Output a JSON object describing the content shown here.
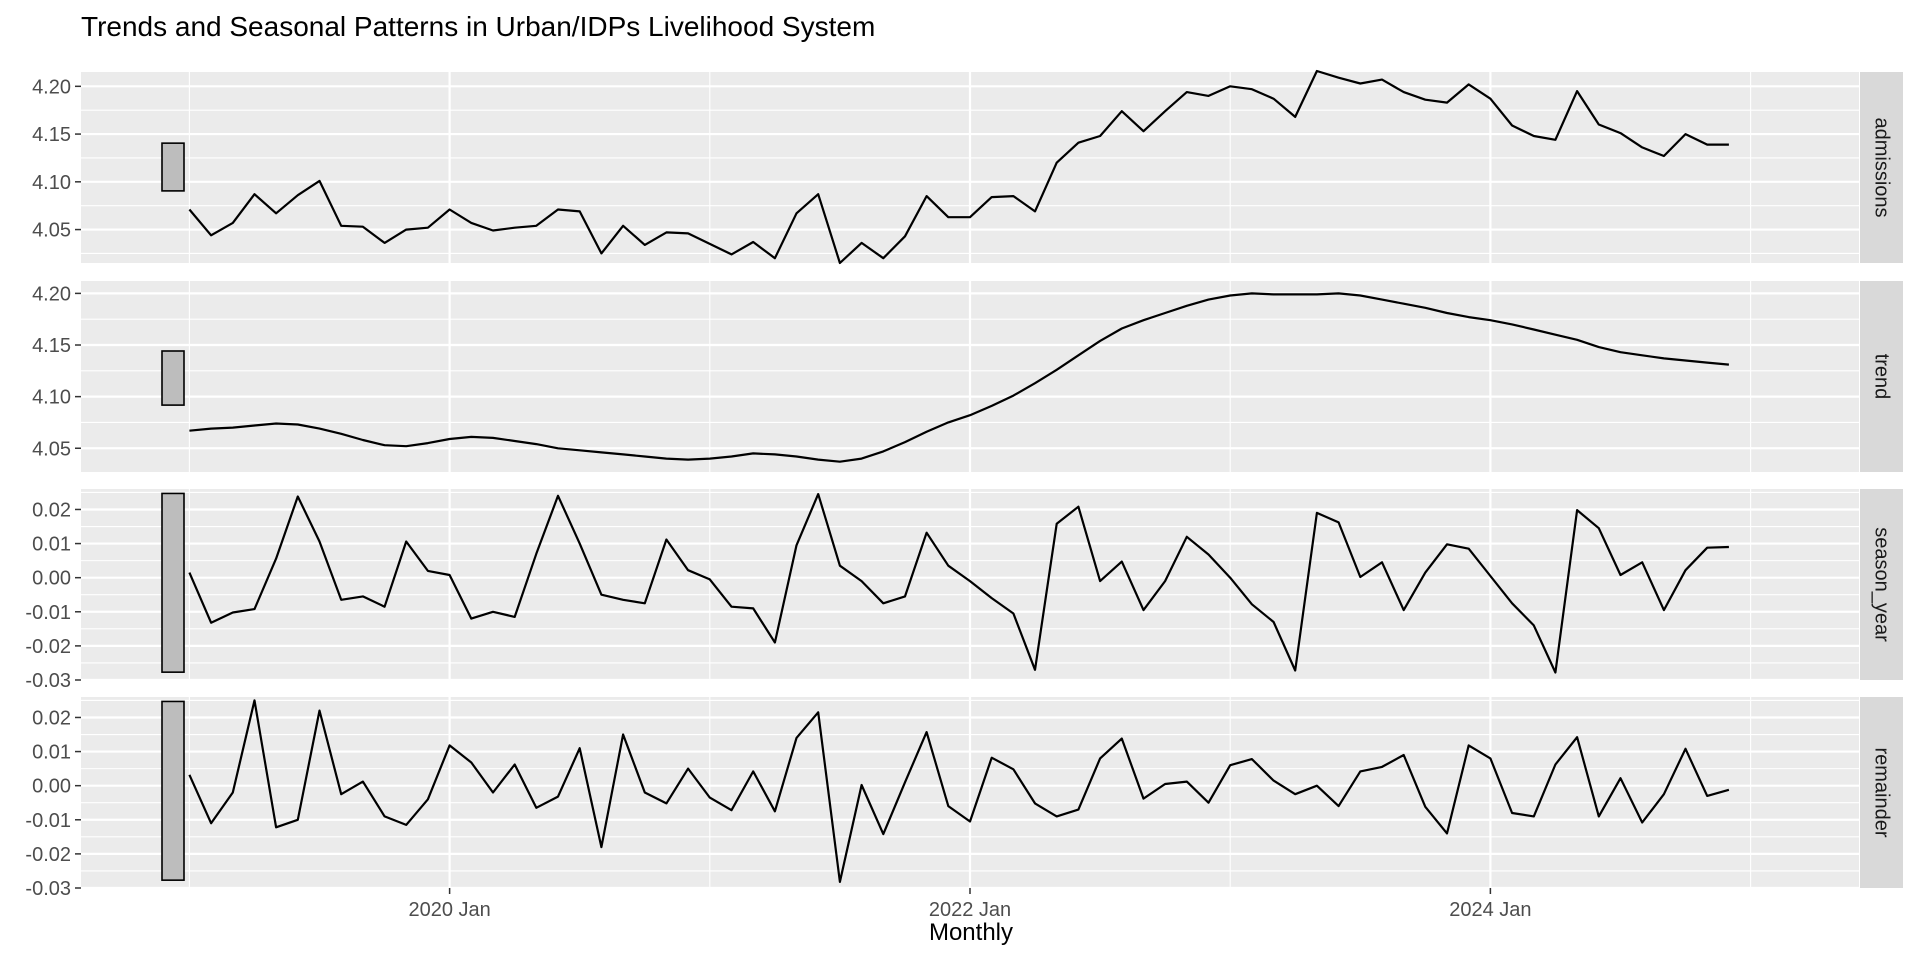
{
  "chart_data": {
    "type": "line",
    "title": "Trends and Seasonal Patterns in Urban/IDPs Livelihood System",
    "xlabel": "Monthly",
    "x_start": "2019 Jan",
    "x_end": "2024 Dec",
    "xlim": [
      "2018 Aug",
      "2025 Jun"
    ],
    "x_ticks": [
      {
        "label": "2020 Jan",
        "month": "2020 Jan"
      },
      {
        "label": "2022 Jan",
        "month": "2022 Jan"
      },
      {
        "label": "2024 Jan",
        "month": "2024 Jan"
      }
    ],
    "grid": true,
    "scale_bar_color": "#bdbdbd",
    "panel_background": "#ebebeb",
    "strip_background": "#d9d9d9",
    "line_color": "#000000",
    "panels": [
      {
        "name": "admissions",
        "ylim": [
          4.015,
          4.215
        ],
        "yticks": [
          4.05,
          4.1,
          4.15,
          4.2
        ],
        "ytick_labels": [
          "4.05",
          "4.10",
          "4.15",
          "4.20"
        ],
        "scale_bar": [
          4.0905,
          4.1405
        ],
        "values": [
          4.071,
          4.044,
          4.057,
          4.087,
          4.067,
          4.086,
          4.101,
          4.054,
          4.053,
          4.036,
          4.05,
          4.052,
          4.071,
          4.057,
          4.049,
          4.052,
          4.054,
          4.071,
          4.069,
          4.025,
          4.054,
          4.034,
          4.047,
          4.046,
          4.035,
          4.024,
          4.037,
          4.02,
          4.067,
          4.087,
          4.015,
          4.036,
          4.02,
          4.043,
          4.085,
          4.063,
          4.063,
          4.084,
          4.085,
          4.069,
          4.12,
          4.141,
          4.148,
          4.174,
          4.153,
          4.174,
          4.194,
          4.19,
          4.2,
          4.197,
          4.187,
          4.168,
          4.216,
          4.209,
          4.203,
          4.207,
          4.194,
          4.186,
          4.183,
          4.202,
          4.187,
          4.159,
          4.148,
          4.144,
          4.195,
          4.16,
          4.151,
          4.136,
          4.127,
          4.15,
          4.139,
          4.139
        ]
      },
      {
        "name": "trend",
        "ylim": [
          4.027,
          4.212
        ],
        "yticks": [
          4.05,
          4.1,
          4.15,
          4.2
        ],
        "ytick_labels": [
          "4.05",
          "4.10",
          "4.15",
          "4.20"
        ],
        "scale_bar": [
          4.0918,
          4.1442
        ],
        "values": [
          4.067,
          4.069,
          4.07,
          4.072,
          4.074,
          4.073,
          4.069,
          4.064,
          4.058,
          4.053,
          4.052,
          4.055,
          4.059,
          4.061,
          4.06,
          4.057,
          4.054,
          4.05,
          4.048,
          4.046,
          4.044,
          4.042,
          4.04,
          4.039,
          4.04,
          4.042,
          4.045,
          4.044,
          4.042,
          4.039,
          4.037,
          4.04,
          4.047,
          4.056,
          4.066,
          4.075,
          4.082,
          4.091,
          4.101,
          4.113,
          4.126,
          4.14,
          4.154,
          4.166,
          4.174,
          4.181,
          4.188,
          4.194,
          4.198,
          4.2,
          4.199,
          4.199,
          4.199,
          4.2,
          4.198,
          4.194,
          4.19,
          4.186,
          4.181,
          4.177,
          4.174,
          4.17,
          4.165,
          4.16,
          4.155,
          4.148,
          4.143,
          4.14,
          4.137,
          4.135,
          4.133,
          4.131
        ]
      },
      {
        "name": "season_year",
        "ylim": [
          -0.03,
          0.026
        ],
        "yticks": [
          -0.03,
          -0.02,
          -0.01,
          0.0,
          0.01,
          0.02
        ],
        "ytick_labels": [
          "-0.03",
          "-0.02",
          "-0.01",
          "0.00",
          "0.01",
          "0.02"
        ],
        "scale_bar": [
          -0.0277,
          0.0247
        ],
        "values": [
          0.0015,
          -0.0132,
          -0.0102,
          -0.0092,
          0.0056,
          0.0238,
          0.0106,
          -0.0065,
          -0.0055,
          -0.0085,
          0.0106,
          0.002,
          0.0008,
          -0.012,
          -0.01,
          -0.0115,
          0.007,
          0.024,
          0.01,
          -0.005,
          -0.0065,
          -0.0075,
          0.0112,
          0.0022,
          -0.0005,
          -0.0085,
          -0.009,
          -0.019,
          0.0095,
          0.0245,
          0.0035,
          -0.001,
          -0.0075,
          -0.0055,
          0.0132,
          0.0035,
          -0.001,
          -0.006,
          -0.0105,
          -0.027,
          0.0158,
          0.0208,
          -0.001,
          0.0047,
          -0.0095,
          -0.001,
          0.012,
          0.0068,
          0.0,
          -0.0078,
          -0.013,
          -0.0272,
          0.019,
          0.0162,
          0.0002,
          0.0045,
          -0.0095,
          0.0015,
          0.0098,
          0.0085,
          0.0005,
          -0.0075,
          -0.014,
          -0.0278,
          0.0198,
          0.0145,
          0.0008,
          0.0045,
          -0.0095,
          0.0022,
          0.0088,
          0.009
        ]
      },
      {
        "name": "remainder",
        "ylim": [
          -0.03,
          0.026
        ],
        "yticks": [
          -0.03,
          -0.02,
          -0.01,
          0.0,
          0.01,
          0.02
        ],
        "ytick_labels": [
          "-0.03",
          "-0.02",
          "-0.01",
          "0.00",
          "0.01",
          "0.02"
        ],
        "scale_bar": [
          -0.0277,
          0.0247
        ],
        "values": [
          0.0032,
          -0.011,
          -0.002,
          0.025,
          -0.0122,
          -0.01,
          0.022,
          -0.0025,
          0.0012,
          -0.009,
          -0.0115,
          -0.004,
          0.0118,
          0.0068,
          -0.002,
          0.0062,
          -0.0065,
          -0.0032,
          0.011,
          -0.018,
          0.015,
          -0.002,
          -0.0052,
          0.005,
          -0.0035,
          -0.0072,
          0.0042,
          -0.0075,
          0.014,
          0.0215,
          -0.0282,
          0.0002,
          -0.0142,
          0.001,
          0.0157,
          -0.006,
          -0.0105,
          0.0082,
          0.0048,
          -0.0052,
          -0.009,
          -0.007,
          0.008,
          0.0138,
          -0.0038,
          0.0005,
          0.0012,
          -0.005,
          0.006,
          0.0078,
          0.0015,
          -0.0025,
          0.0,
          -0.006,
          0.0042,
          0.0055,
          0.009,
          -0.0062,
          -0.014,
          0.0118,
          0.008,
          -0.008,
          -0.009,
          0.0062,
          0.0142,
          -0.009,
          0.0022,
          -0.0108,
          -0.0025,
          0.0108,
          -0.003,
          -0.0012
        ]
      }
    ]
  }
}
